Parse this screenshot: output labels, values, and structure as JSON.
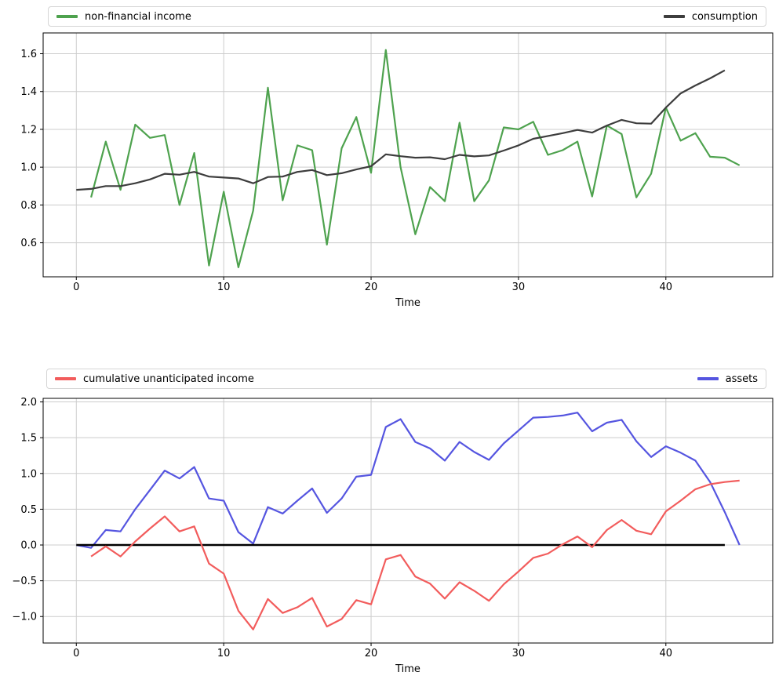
{
  "figure": {
    "background": "#ffffff",
    "grid_color": "#cccccc",
    "frame_color": "#000000",
    "text_color": "#000000"
  },
  "chart_data": [
    {
      "type": "line",
      "title": "",
      "xlabel": "Time",
      "ylabel": "",
      "grid": true,
      "legend_position": "above-axes, left and right",
      "xlim": [
        -2.25,
        47.25
      ],
      "ylim": [
        0.42,
        1.71
      ],
      "x_ticks": [
        0,
        10,
        20,
        30,
        40
      ],
      "x_tick_labels": [
        "0",
        "10",
        "20",
        "30",
        "40"
      ],
      "y_ticks": [
        0.6,
        0.8,
        1.0,
        1.2,
        1.4,
        1.6
      ],
      "y_tick_labels": [
        "0.6",
        "0.8",
        "1.0",
        "1.2",
        "1.4",
        "1.6"
      ],
      "legend": [
        {
          "label": "non-financial income",
          "color": "#4ea24e"
        },
        {
          "label": "consumption",
          "color": "#3d3d3d"
        }
      ],
      "series": [
        {
          "name": "non-financial income",
          "color": "#4ea24e",
          "x_start": 1,
          "values": [
            0.84,
            1.135,
            0.88,
            1.225,
            1.155,
            1.17,
            0.8,
            1.075,
            0.48,
            0.87,
            0.47,
            0.77,
            1.42,
            0.825,
            1.115,
            1.09,
            0.59,
            1.1,
            1.265,
            0.97,
            1.62,
            1.0,
            0.645,
            0.895,
            0.82,
            1.235,
            0.82,
            0.93,
            1.21,
            1.2,
            1.24,
            1.065,
            1.09,
            1.135,
            0.845,
            1.22,
            1.175,
            0.84,
            0.965,
            1.315,
            1.14,
            1.18,
            1.055,
            1.05,
            1.01
          ]
        },
        {
          "name": "consumption",
          "color": "#3d3d3d",
          "x_start": 0,
          "values": [
            0.88,
            0.885,
            0.9,
            0.9,
            0.915,
            0.935,
            0.965,
            0.96,
            0.975,
            0.95,
            0.945,
            0.94,
            0.915,
            0.948,
            0.95,
            0.975,
            0.985,
            0.958,
            0.968,
            0.988,
            1.005,
            1.068,
            1.058,
            1.05,
            1.052,
            1.042,
            1.065,
            1.057,
            1.062,
            1.088,
            1.115,
            1.15,
            1.165,
            1.18,
            1.197,
            1.183,
            1.22,
            1.25,
            1.232,
            1.23,
            1.315,
            1.39,
            1.432,
            1.47,
            1.512
          ]
        }
      ]
    },
    {
      "type": "line",
      "title": "",
      "xlabel": "Time",
      "ylabel": "",
      "grid": true,
      "legend_position": "above-axes, left and right",
      "xlim": [
        -2.25,
        47.25
      ],
      "ylim": [
        -1.37,
        2.05
      ],
      "x_ticks": [
        0,
        10,
        20,
        30,
        40
      ],
      "x_tick_labels": [
        "0",
        "10",
        "20",
        "30",
        "40"
      ],
      "y_ticks": [
        -1.0,
        -0.5,
        0.0,
        0.5,
        1.0,
        1.5,
        2.0
      ],
      "y_tick_labels": [
        "−1.0",
        "−0.5",
        "0.0",
        "0.5",
        "1.0",
        "1.5",
        "2.0"
      ],
      "legend": [
        {
          "label": "cumulative unanticipated income",
          "color": "#f25c5c"
        },
        {
          "label": "assets",
          "color": "#5555e0"
        }
      ],
      "series": [
        {
          "name": "assets",
          "color": "#5555e0",
          "x_start": 0,
          "values": [
            0.0,
            -0.04,
            0.21,
            0.19,
            0.5,
            0.77,
            1.04,
            0.93,
            1.09,
            0.65,
            0.62,
            0.18,
            0.02,
            0.53,
            0.44,
            0.62,
            0.79,
            0.45,
            0.65,
            0.955,
            0.98,
            1.65,
            1.76,
            1.44,
            1.35,
            1.18,
            1.44,
            1.3,
            1.19,
            1.42,
            1.6,
            1.78,
            1.79,
            1.81,
            1.85,
            1.59,
            1.71,
            1.75,
            1.45,
            1.23,
            1.38,
            1.29,
            1.18,
            0.88,
            0.46,
            0.0
          ]
        },
        {
          "name": "zero line",
          "color": "#000000",
          "x": [
            0,
            44
          ],
          "values": [
            0,
            0
          ],
          "width": 2.4
        },
        {
          "name": "cumulative unanticipated income",
          "color": "#f25c5c",
          "x_start": 1,
          "values": [
            -0.16,
            -0.02,
            -0.16,
            0.05,
            0.23,
            0.4,
            0.19,
            0.26,
            -0.26,
            -0.4,
            -0.92,
            -1.18,
            -0.755,
            -0.95,
            -0.87,
            -0.74,
            -1.14,
            -1.035,
            -0.77,
            -0.83,
            -0.2,
            -0.14,
            -0.44,
            -0.54,
            -0.75,
            -0.52,
            -0.64,
            -0.78,
            -0.55,
            -0.37,
            -0.18,
            -0.12,
            0.01,
            0.12,
            -0.03,
            0.21,
            0.35,
            0.2,
            0.15,
            0.47,
            0.62,
            0.78,
            0.85,
            0.88,
            0.9
          ]
        }
      ]
    }
  ]
}
